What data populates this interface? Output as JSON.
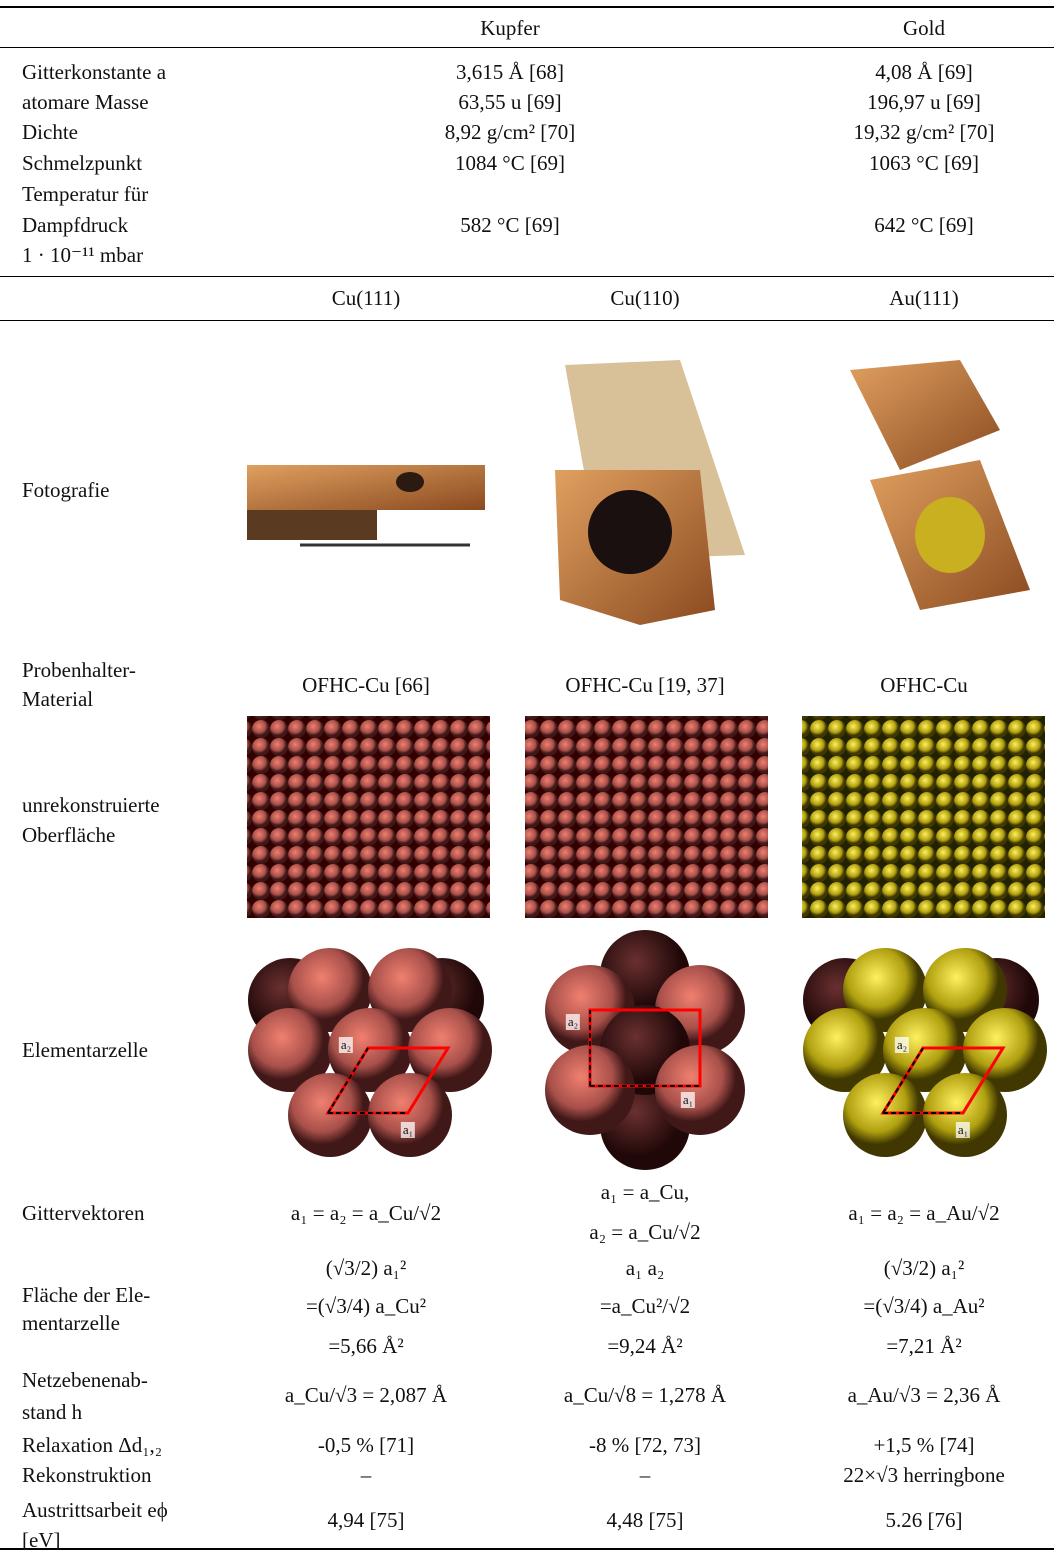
{
  "table_top": {
    "columns": [
      "Kupfer",
      "Gold"
    ],
    "rows": [
      {
        "label": [
          "Gitterkonstante a"
        ],
        "values": [
          "3,615 Å [68]",
          "4,08 Å [69]"
        ]
      },
      {
        "label": [
          "atomare Masse"
        ],
        "values": [
          "63,55 u [69]",
          "196,97 u [69]"
        ]
      },
      {
        "label": [
          "Dichte"
        ],
        "values": [
          "8,92 g/cm² [70]",
          "19,32 g/cm² [70]"
        ]
      },
      {
        "label": [
          "Schmelzpunkt"
        ],
        "values": [
          "1084 °C [69]",
          "1063 °C [69]"
        ]
      },
      {
        "label": [
          "Temperatur für",
          "Dampfdruck",
          "1 · 10⁻¹¹ mbar"
        ],
        "values": [
          "582 °C [69]",
          "642 °C [69]"
        ]
      }
    ]
  },
  "table_surfaces": {
    "columns": [
      "Cu(111)",
      "Cu(110)",
      "Au(111)"
    ],
    "rows": [
      {
        "label": [
          "Fotografie"
        ]
      },
      {
        "label": [
          "Probenhalter-",
          "Material"
        ],
        "values": [
          [
            "OFHC-Cu [66]"
          ],
          [
            "OFHC-Cu [19, 37]"
          ],
          [
            "OFHC-Cu"
          ]
        ]
      },
      {
        "label": [
          "unrekonstruierte",
          "Oberfläche"
        ]
      },
      {
        "label": [
          "Elementarzelle"
        ],
        "vector_labels": [
          [
            "a₁",
            "a₂"
          ],
          [
            "a₁",
            "a₂"
          ],
          [
            "a₁",
            "a₂"
          ]
        ]
      },
      {
        "label": [
          "Gittervektoren"
        ],
        "values": [
          [
            "a₁ = a₂ = a_Cu/√2"
          ],
          [
            "a₁ = a_Cu,",
            "a₂ = a_Cu/√2"
          ],
          [
            "a₁ = a₂ = a_Au/√2"
          ]
        ]
      },
      {
        "label": [
          "Fläche der Ele-",
          "mentarzelle"
        ],
        "values": [
          [
            "(√3/2) a₁²",
            "=(√3/4) a_Cu²",
            "=5,66 Å²"
          ],
          [
            "a₁ a₂",
            "=a_Cu²/√2",
            "=9,24 Å²"
          ],
          [
            "(√3/2) a₁²",
            "=(√3/4) a_Au²",
            "=7,21 Å²"
          ]
        ]
      },
      {
        "label": [
          "Netzebenenab-",
          "stand h"
        ],
        "values": [
          [
            "a_Cu/√3 = 2,087 Å"
          ],
          [
            "a_Cu/√8 = 1,278 Å"
          ],
          [
            "a_Au/√3 = 2,36 Å"
          ]
        ]
      },
      {
        "label": [
          "Relaxation Δd₁,₂"
        ],
        "values": [
          [
            "-0,5 % [71]"
          ],
          [
            "-8 % [72, 73]"
          ],
          [
            "+1,5 % [74]"
          ]
        ]
      },
      {
        "label": [
          "Rekonstruktion"
        ],
        "values": [
          [
            "–"
          ],
          [
            "–"
          ],
          [
            "22×√3 herringbone"
          ]
        ]
      },
      {
        "label": [
          "Austrittsarbeit eϕ",
          "[eV]"
        ],
        "values": [
          [
            "4,94 [75]"
          ],
          [
            "4,48 [75]"
          ],
          [
            "5.26 [76]"
          ]
        ]
      }
    ]
  }
}
